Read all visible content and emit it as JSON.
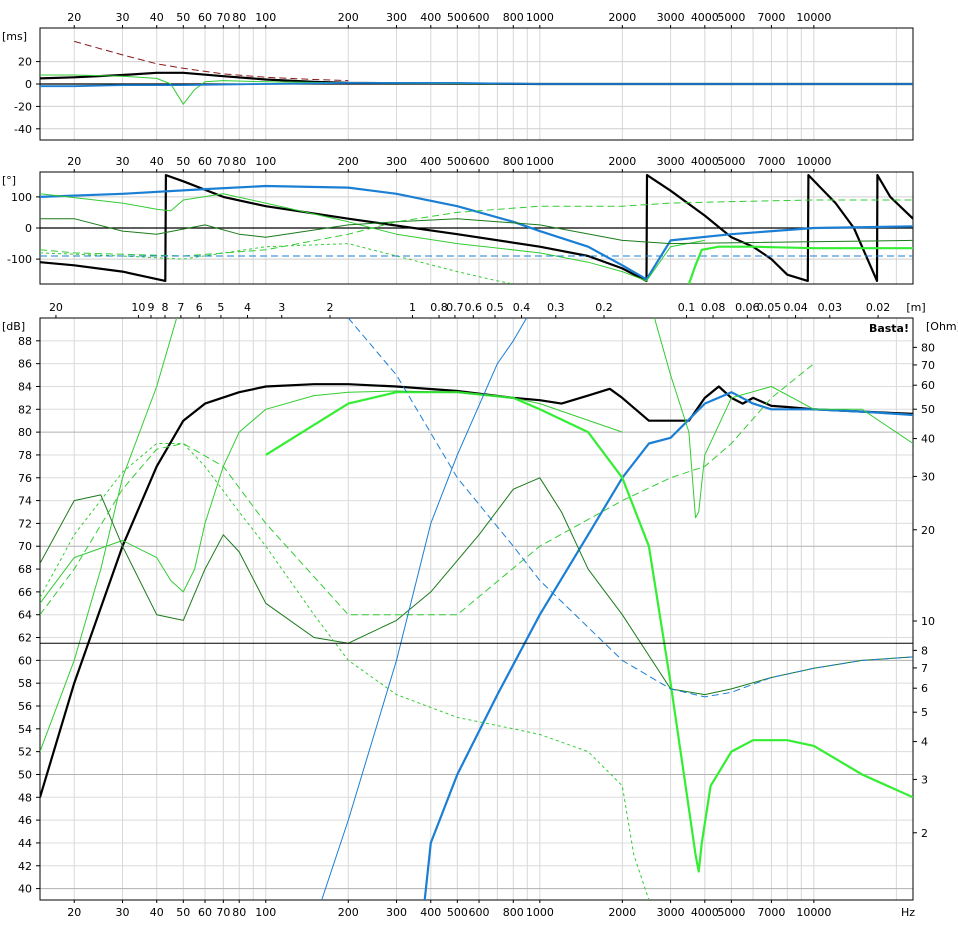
{
  "chart_data": [
    {
      "type": "line",
      "panel": "group-delay",
      "ylabel": "[ms]",
      "xscale": "log",
      "xlim": [
        15,
        23000
      ],
      "ylim": [
        -50,
        50
      ],
      "yticks": [
        20,
        0,
        -20,
        -40
      ],
      "xticks_top": [
        20,
        30,
        40,
        50,
        60,
        70,
        80,
        100,
        200,
        300,
        400,
        500,
        600,
        800,
        1000,
        2000,
        3000,
        4000,
        5000,
        7000,
        10000
      ],
      "grid": true,
      "series": [
        {
          "color": "#8b1a1a",
          "style": "dashed",
          "x": [
            20,
            30,
            40,
            50,
            70,
            100,
            150,
            200
          ],
          "y": [
            38,
            26,
            18,
            14,
            9,
            6,
            4,
            3
          ]
        },
        {
          "color": "#000000",
          "style": "solid-thick",
          "x": [
            15,
            20,
            30,
            40,
            50,
            70,
            100,
            150,
            200,
            400,
            1000,
            3000,
            23000
          ],
          "y": [
            5,
            6,
            8,
            10,
            10,
            7,
            4,
            2,
            1,
            0.5,
            0,
            0,
            0
          ]
        },
        {
          "color": "#33cc33",
          "style": "solid-thin",
          "x": [
            15,
            20,
            30,
            40,
            45,
            50,
            55,
            60,
            70,
            100,
            200,
            1000
          ],
          "y": [
            8,
            8,
            7,
            5,
            0,
            -18,
            -5,
            2,
            3,
            2,
            1,
            0
          ]
        },
        {
          "color": "#1a7fd4",
          "style": "solid",
          "x": [
            15,
            20,
            30,
            50,
            100,
            200,
            500,
            1000,
            23000
          ],
          "y": [
            -2,
            -2,
            -1,
            -1,
            0,
            1,
            1,
            0,
            0
          ]
        }
      ]
    },
    {
      "type": "line",
      "panel": "phase",
      "ylabel": "[°]",
      "xscale": "log",
      "xlim": [
        15,
        23000
      ],
      "ylim": [
        -180,
        180
      ],
      "yticks": [
        100,
        0,
        -100
      ],
      "xticks_top": [
        20,
        30,
        40,
        50,
        60,
        70,
        80,
        100,
        200,
        300,
        400,
        500,
        600,
        800,
        1000,
        2000,
        3000,
        4000,
        5000,
        7000,
        10000
      ],
      "grid": true,
      "series": [
        {
          "color": "#000000",
          "style": "solid-thick",
          "x": [
            15,
            20,
            30,
            43,
            43.2,
            50,
            70,
            100,
            200,
            500,
            1000,
            1500,
            2000,
            2450,
            2460,
            3000,
            4000,
            5000,
            6000,
            7000,
            8000,
            9500,
            9550,
            12000,
            14000,
            17000,
            17050,
            19000,
            23000
          ],
          "y": [
            -110,
            -120,
            -140,
            -170,
            170,
            150,
            100,
            70,
            30,
            -20,
            -60,
            -90,
            -130,
            -170,
            170,
            120,
            40,
            -30,
            -60,
            -100,
            -150,
            -170,
            170,
            80,
            0,
            -170,
            170,
            100,
            30
          ]
        },
        {
          "color": "#1a7fd4",
          "style": "solid-thick",
          "x": [
            15,
            30,
            60,
            100,
            200,
            300,
            500,
            800,
            1000,
            1500,
            2000,
            2450,
            3000,
            5000,
            10000,
            23000
          ],
          "y": [
            100,
            110,
            125,
            135,
            130,
            110,
            70,
            20,
            -10,
            -60,
            -120,
            -165,
            -40,
            -20,
            0,
            5
          ]
        },
        {
          "color": "#33cc33",
          "style": "solid-thin",
          "x": [
            15,
            30,
            40,
            45,
            50,
            70,
            100,
            200,
            300,
            500,
            1000,
            1500,
            2000,
            2450,
            3000,
            4000
          ],
          "y": [
            110,
            80,
            60,
            55,
            90,
            110,
            80,
            20,
            -20,
            -50,
            -80,
            -110,
            -140,
            -170,
            -60,
            -40
          ]
        },
        {
          "color": "#1a7a1a",
          "style": "solid-thin",
          "x": [
            15,
            20,
            30,
            40,
            60,
            80,
            100,
            200,
            300,
            500,
            1000,
            2000,
            3000,
            23000
          ],
          "y": [
            30,
            30,
            -10,
            -20,
            10,
            -20,
            -30,
            10,
            20,
            30,
            10,
            -40,
            -50,
            -40
          ]
        },
        {
          "color": "#33cc33",
          "style": "dashed",
          "x": [
            15,
            20,
            50,
            100,
            200,
            300,
            500,
            1000,
            2000,
            3000,
            5000,
            10000,
            23000
          ],
          "y": [
            -70,
            -80,
            -90,
            -70,
            -20,
            20,
            50,
            70,
            70,
            80,
            85,
            90,
            90
          ]
        },
        {
          "color": "#33cc33",
          "style": "dotted",
          "x": [
            15,
            30,
            50,
            100,
            200,
            300,
            500,
            700,
            800
          ],
          "y": [
            -80,
            -90,
            -100,
            -60,
            -50,
            -90,
            -140,
            -170,
            -180
          ]
        },
        {
          "color": "#1a7fd4",
          "style": "dashed",
          "x": [
            15,
            23000
          ],
          "y": [
            -90,
            -90
          ]
        },
        {
          "color": "#33ee33",
          "style": "solid-thick",
          "x": [
            3500,
            3700,
            3900,
            4500,
            6000,
            10000,
            23000
          ],
          "y": [
            -180,
            -120,
            -70,
            -60,
            -60,
            -65,
            -65
          ]
        }
      ]
    },
    {
      "type": "line",
      "panel": "spl",
      "ylabel": "[dB]",
      "y2label": "[Ohm]",
      "xlabel": "Hz",
      "xscale": "log",
      "xlim": [
        15,
        23000
      ],
      "ylim": [
        39,
        90
      ],
      "yticks": [
        88,
        86,
        84,
        82,
        80,
        78,
        76,
        74,
        72,
        70,
        68,
        66,
        64,
        62,
        60,
        58,
        56,
        54,
        52,
        50,
        48,
        46,
        44,
        42,
        40
      ],
      "y2ticks": [
        80,
        70,
        60,
        50,
        40,
        30,
        20,
        10,
        8,
        7,
        6,
        5,
        4,
        3,
        2
      ],
      "xticks_bottom": [
        20,
        30,
        40,
        50,
        60,
        70,
        80,
        100,
        200,
        300,
        400,
        500,
        600,
        800,
        1000,
        2000,
        3000,
        4000,
        5000,
        7000,
        10000
      ],
      "xticks_top_m": [
        "20",
        "10",
        "9",
        "8",
        "7",
        "6",
        "5",
        "4",
        "3",
        "2",
        "1",
        "0.8",
        "0.7",
        "0.6",
        "0.5",
        "0.4",
        "0.3",
        "0.2",
        "0.1",
        "0.08",
        "0.06",
        "0.05",
        "0.04",
        "0.03",
        "0.02"
      ],
      "watermark": "Basta!",
      "reference_line": 61.5,
      "grid": true,
      "series": [
        {
          "color": "#000000",
          "style": "solid-thick",
          "x": [
            15,
            20,
            30,
            40,
            50,
            60,
            80,
            100,
            150,
            200,
            300,
            500,
            800,
            1000,
            1200,
            1500,
            1800,
            2000,
            2500,
            3000,
            3500,
            4000,
            4500,
            5000,
            5500,
            6000,
            7000,
            8000,
            10000,
            15000,
            23000
          ],
          "y": [
            48,
            58,
            70,
            77,
            81,
            82.5,
            83.5,
            84,
            84.2,
            84.2,
            84,
            83.6,
            83,
            82.8,
            82.5,
            83.2,
            83.8,
            83,
            81,
            81,
            81,
            83,
            84,
            83,
            82.5,
            83,
            82.3,
            82.2,
            82,
            81.8,
            81.6
          ]
        },
        {
          "color": "#1a7fd4",
          "style": "solid-thick",
          "x": [
            380,
            400,
            500,
            700,
            1000,
            1500,
            2000,
            2500,
            3000,
            4000,
            5000,
            6000,
            7000,
            10000,
            15000,
            23000
          ],
          "y": [
            39,
            44,
            50,
            57,
            64,
            71,
            76,
            79,
            79.5,
            82.5,
            83.5,
            82.5,
            82,
            82,
            81.8,
            81.5
          ]
        },
        {
          "color": "#33ee33",
          "style": "solid-thick",
          "x": [
            100,
            200,
            300,
            500,
            800,
            1000,
            1500,
            2000,
            2500,
            3000,
            3500,
            3700,
            3800,
            3900,
            4200,
            5000,
            6000,
            7000,
            8000,
            10000,
            15000,
            23000
          ],
          "y": [
            78,
            82.5,
            83.5,
            83.5,
            83,
            82,
            80,
            76,
            70,
            58,
            47,
            43,
            41.5,
            44,
            49,
            52,
            53,
            53,
            53,
            52.5,
            50,
            48
          ]
        },
        {
          "color": "#33cc33",
          "style": "solid-thin",
          "x": [
            15,
            20,
            25,
            30,
            40,
            50,
            60,
            80,
            100,
            200,
            300,
            500,
            800,
            1000,
            2000,
            3000,
            3500,
            3700,
            3800,
            4000,
            5000,
            7000,
            10000,
            15000,
            23000
          ],
          "y": [
            52,
            60,
            68,
            76,
            84,
            92,
            100,
            110,
            116,
            120,
            120,
            120,
            120,
            118,
            100,
            85,
            80,
            72.5,
            73,
            78,
            83,
            84,
            82,
            82,
            79
          ]
        },
        {
          "color": "#33cc33",
          "style": "solid-thin",
          "x": [
            15,
            20,
            30,
            40,
            45,
            50,
            55,
            60,
            70,
            80,
            100,
            150,
            200,
            300,
            500,
            800,
            1000,
            2000
          ],
          "y": [
            65,
            69,
            70.5,
            69,
            67,
            66,
            68,
            72,
            77,
            80,
            82,
            83.2,
            83.5,
            83.6,
            83.5,
            83,
            82.5,
            80
          ]
        },
        {
          "color": "#1a7a1a",
          "style": "solid-thin",
          "x": [
            15,
            20,
            25,
            30,
            40,
            50,
            60,
            70,
            80,
            100,
            150,
            200,
            300,
            400,
            600,
            800,
            1000,
            1200,
            1500,
            2000,
            3000,
            4000,
            5000,
            7000,
            10000,
            15000,
            23000
          ],
          "y": [
            68.5,
            74,
            74.5,
            70,
            64,
            63.5,
            68,
            71,
            69.5,
            65,
            62,
            61.5,
            63.5,
            66,
            71,
            75,
            76,
            73,
            68,
            64,
            57.5,
            57,
            57.5,
            58.5,
            59.3,
            60,
            60.3
          ]
        },
        {
          "color": "#33cc33",
          "style": "dashed",
          "x": [
            15,
            20,
            30,
            40,
            50,
            70,
            100,
            200,
            500,
            1000,
            2000,
            3000,
            4000,
            5000,
            7000,
            10000
          ],
          "y": [
            64,
            68,
            75,
            78.5,
            79,
            77,
            72,
            64,
            64,
            70,
            74,
            76,
            77,
            79,
            83,
            86
          ]
        },
        {
          "color": "#33cc33",
          "style": "dotted",
          "x": [
            15,
            20,
            30,
            40,
            50,
            60,
            80,
            100,
            150,
            200,
            300,
            500,
            800,
            1000,
            1500,
            2000,
            2200,
            2500
          ],
          "y": [
            65.5,
            71,
            76.5,
            79,
            79,
            77,
            73,
            70,
            64,
            60,
            57,
            55,
            54,
            53.5,
            52,
            49,
            43,
            39
          ]
        },
        {
          "color": "#1a7fd4",
          "style": "dashed",
          "x": [
            200,
            300,
            500,
            800,
            1000,
            2000,
            3000,
            4000,
            5000,
            7000,
            10000,
            15000,
            23000
          ],
          "y": [
            90,
            85,
            76,
            70,
            67,
            60,
            57.5,
            56.8,
            57.2,
            58.5,
            59.3,
            60,
            60.3
          ]
        },
        {
          "color": "#1a7fd4",
          "style": "solid-thin",
          "x": [
            160,
            200,
            300,
            400,
            500,
            700,
            800,
            1000
          ],
          "y": [
            39,
            46,
            60,
            72,
            78,
            86,
            88,
            92
          ]
        },
        {
          "color": "#000000",
          "style": "solid-thin",
          "x": [
            15,
            23000
          ],
          "y": [
            61.5,
            61.5
          ]
        }
      ]
    }
  ]
}
